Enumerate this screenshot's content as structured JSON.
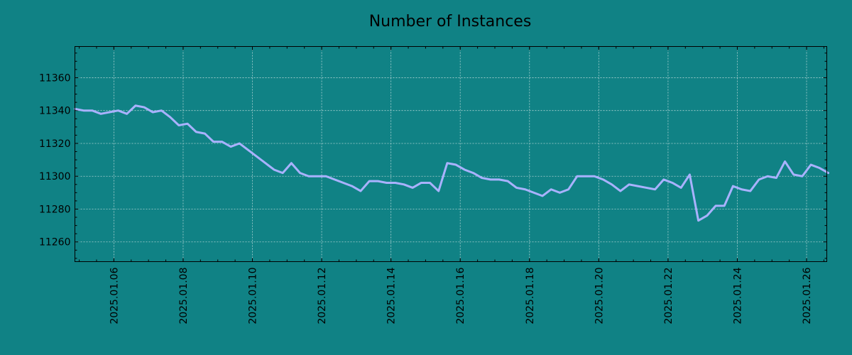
{
  "colors": {
    "background": "#108285",
    "line": "#a9b2ff",
    "grid": "#c8e0e0",
    "text": "#000000"
  },
  "chart_data": {
    "type": "line",
    "title": "Number of Instances",
    "xlabel": "",
    "ylabel": "",
    "grid": true,
    "legend": "none",
    "x_format": "YYYY.MM.DD",
    "xlim": [
      "2025-01-04 21:00",
      "2025-01-26 14:00"
    ],
    "ylim": [
      11248,
      11379
    ],
    "x_ticks": [
      "2025.01.06",
      "2025.01.08",
      "2025.01.10",
      "2025.01.12",
      "2025.01.14",
      "2025.01.16",
      "2025.01.18",
      "2025.01.20",
      "2025.01.22",
      "2025.01.24",
      "2025.01.26"
    ],
    "y_ticks": [
      11260,
      11280,
      11300,
      11320,
      11340,
      11360
    ],
    "series": [
      {
        "points": [
          [
            "2025-01-04 21:00",
            11341
          ],
          [
            "2025-01-05 03:00",
            11340
          ],
          [
            "2025-01-05 09:00",
            11340
          ],
          [
            "2025-01-05 15:00",
            11338
          ],
          [
            "2025-01-05 21:00",
            11339
          ],
          [
            "2025-01-06 03:00",
            11340
          ],
          [
            "2025-01-06 09:00",
            11338
          ],
          [
            "2025-01-06 15:00",
            11343
          ],
          [
            "2025-01-06 21:00",
            11342
          ],
          [
            "2025-01-07 03:00",
            11339
          ],
          [
            "2025-01-07 09:00",
            11340
          ],
          [
            "2025-01-07 15:00",
            11336
          ],
          [
            "2025-01-07 21:00",
            11331
          ],
          [
            "2025-01-08 03:00",
            11332
          ],
          [
            "2025-01-08 09:00",
            11327
          ],
          [
            "2025-01-08 15:00",
            11326
          ],
          [
            "2025-01-08 21:00",
            11321
          ],
          [
            "2025-01-09 03:00",
            11321
          ],
          [
            "2025-01-09 09:00",
            11318
          ],
          [
            "2025-01-09 15:00",
            11320
          ],
          [
            "2025-01-09 21:00",
            11316
          ],
          [
            "2025-01-10 03:00",
            11312
          ],
          [
            "2025-01-10 09:00",
            11308
          ],
          [
            "2025-01-10 15:00",
            11304
          ],
          [
            "2025-01-10 21:00",
            11302
          ],
          [
            "2025-01-11 03:00",
            11308
          ],
          [
            "2025-01-11 09:00",
            11302
          ],
          [
            "2025-01-11 15:00",
            11300
          ],
          [
            "2025-01-11 21:00",
            11300
          ],
          [
            "2025-01-12 03:00",
            11300
          ],
          [
            "2025-01-12 09:00",
            11298
          ],
          [
            "2025-01-12 15:00",
            11296
          ],
          [
            "2025-01-12 21:00",
            11294
          ],
          [
            "2025-01-13 03:00",
            11291
          ],
          [
            "2025-01-13 09:00",
            11297
          ],
          [
            "2025-01-13 15:00",
            11297
          ],
          [
            "2025-01-13 21:00",
            11296
          ],
          [
            "2025-01-14 03:00",
            11296
          ],
          [
            "2025-01-14 09:00",
            11295
          ],
          [
            "2025-01-14 15:00",
            11293
          ],
          [
            "2025-01-14 21:00",
            11296
          ],
          [
            "2025-01-15 03:00",
            11296
          ],
          [
            "2025-01-15 09:00",
            11291
          ],
          [
            "2025-01-15 15:00",
            11308
          ],
          [
            "2025-01-15 21:00",
            11307
          ],
          [
            "2025-01-16 03:00",
            11304
          ],
          [
            "2025-01-16 09:00",
            11302
          ],
          [
            "2025-01-16 15:00",
            11299
          ],
          [
            "2025-01-16 21:00",
            11298
          ],
          [
            "2025-01-17 03:00",
            11298
          ],
          [
            "2025-01-17 09:00",
            11297
          ],
          [
            "2025-01-17 15:00",
            11293
          ],
          [
            "2025-01-17 21:00",
            11292
          ],
          [
            "2025-01-18 03:00",
            11290
          ],
          [
            "2025-01-18 09:00",
            11288
          ],
          [
            "2025-01-18 15:00",
            11292
          ],
          [
            "2025-01-18 21:00",
            11290
          ],
          [
            "2025-01-19 03:00",
            11292
          ],
          [
            "2025-01-19 09:00",
            11300
          ],
          [
            "2025-01-19 15:00",
            11300
          ],
          [
            "2025-01-19 21:00",
            11300
          ],
          [
            "2025-01-20 03:00",
            11298
          ],
          [
            "2025-01-20 09:00",
            11295
          ],
          [
            "2025-01-20 15:00",
            11291
          ],
          [
            "2025-01-20 21:00",
            11295
          ],
          [
            "2025-01-21 03:00",
            11294
          ],
          [
            "2025-01-21 09:00",
            11293
          ],
          [
            "2025-01-21 15:00",
            11292
          ],
          [
            "2025-01-21 21:00",
            11298
          ],
          [
            "2025-01-22 03:00",
            11296
          ],
          [
            "2025-01-22 09:00",
            11293
          ],
          [
            "2025-01-22 15:00",
            11301
          ],
          [
            "2025-01-22 21:00",
            11273
          ],
          [
            "2025-01-23 03:00",
            11276
          ],
          [
            "2025-01-23 09:00",
            11282
          ],
          [
            "2025-01-23 15:00",
            11282
          ],
          [
            "2025-01-23 21:00",
            11294
          ],
          [
            "2025-01-24 03:00",
            11292
          ],
          [
            "2025-01-24 09:00",
            11291
          ],
          [
            "2025-01-24 15:00",
            11298
          ],
          [
            "2025-01-24 21:00",
            11300
          ],
          [
            "2025-01-25 03:00",
            11299
          ],
          [
            "2025-01-25 09:00",
            11309
          ],
          [
            "2025-01-25 15:00",
            11301
          ],
          [
            "2025-01-25 21:00",
            11300
          ],
          [
            "2025-01-26 03:00",
            11307
          ],
          [
            "2025-01-26 09:00",
            11305
          ],
          [
            "2025-01-26 15:00",
            11302
          ]
        ]
      }
    ]
  }
}
